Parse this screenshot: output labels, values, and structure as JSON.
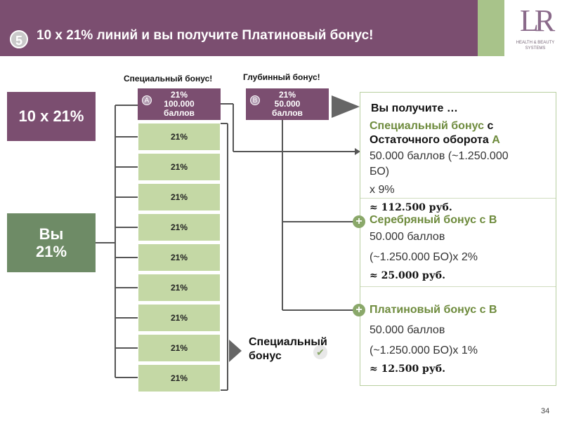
{
  "header": {
    "step_number": "5",
    "title": "10 x 21% линий и вы получите Платиновый бонус!",
    "logo_mark": "LR",
    "logo_text": "HEALTH & BEAUTY SYSTEMS"
  },
  "left": {
    "top_box": "10 x 21%",
    "bottom_box_line1": "Вы",
    "bottom_box_line2": "21%"
  },
  "labels": {
    "special_bonus": "Специальный бонус!",
    "deep_bonus": "Глубинный бонус!"
  },
  "box_a": {
    "tag": "A",
    "line1": "21%",
    "line2": "100.000",
    "line3": "баллов"
  },
  "box_b": {
    "tag": "B",
    "line1": "21%",
    "line2": "50.000",
    "line3": "баллов"
  },
  "lines": [
    "21%",
    "21%",
    "21%",
    "21%",
    "21%",
    "21%",
    "21%",
    "21%",
    "21%"
  ],
  "panel": {
    "heading": "Вы получите …",
    "s1_title_a": "Специальный бонус",
    "s1_title_b": " с",
    "s1_title_c": "Остаточного оборота ",
    "s1_title_d": "А",
    "s1_line1": "50.000 баллов (~1.250.000",
    "s1_line2": "БО)",
    "s1_line3": "x 9%",
    "s1_result": "≈ 112.500 руб.",
    "s2_title": "Серебряный бонус с В",
    "s2_line1": "50.000 баллов",
    "s2_line2": "(~1.250.000 БО)x 2%",
    "s2_result": "≈ 25.000 руб.",
    "s3_title": "Платиновый бонус с В",
    "s3_line1": "50.000 баллов",
    "s3_line2": "(~1.250.000 БО)x 1%",
    "s3_result": "≈ 12.500 руб."
  },
  "special_bonus_bottom": {
    "line1": "Специальный",
    "line2": "бонус"
  },
  "page_number": "34",
  "colors": {
    "purple": "#7b4e70",
    "dark_green": "#6e8b66",
    "light_green": "#c4d8a5",
    "accent_green": "#6e8b3d"
  }
}
